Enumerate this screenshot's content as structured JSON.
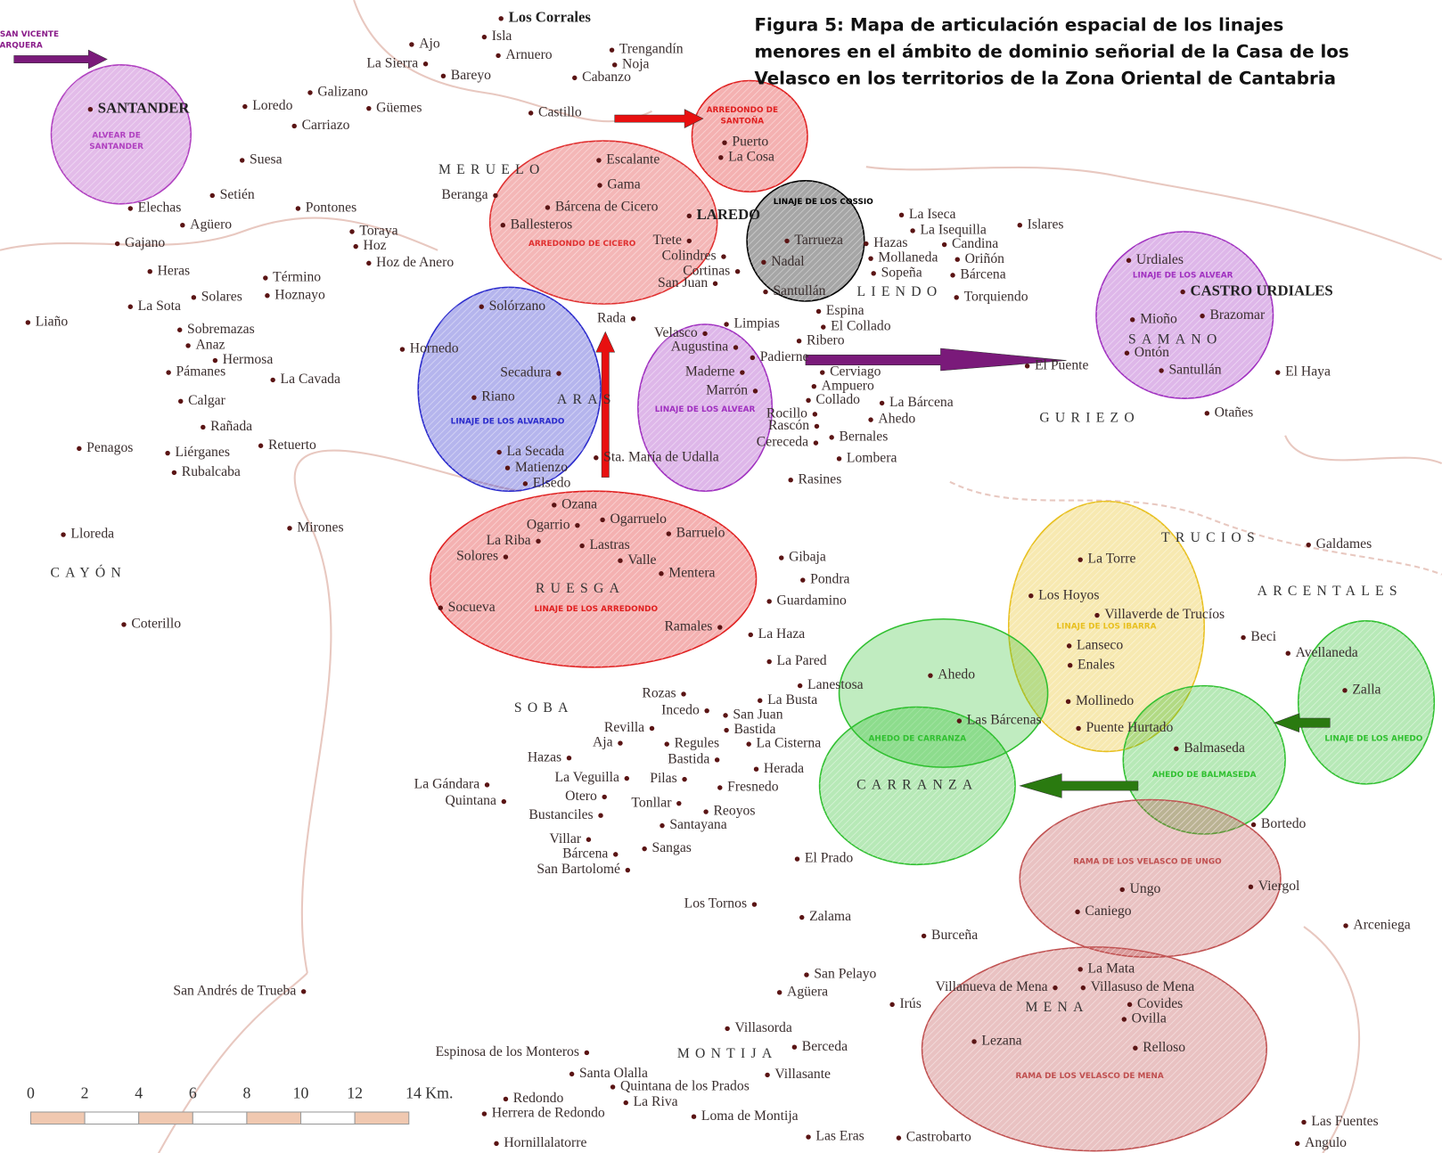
{
  "title": [
    "Figura 5: Mapa de articulación espacial de los linajes",
    "menores en el ámbito de dominio señorial de la Casa de los",
    "Velasco en los territorios de la Zona Oriental de Cantabria"
  ],
  "places": [
    "Los Corrales",
    "Isla",
    "Ajo",
    "La Sierra",
    "Arnuero",
    "Bareyo",
    "Trengandín",
    "Noja",
    "Cabanzo",
    "Galizano",
    "SANTANDER",
    "Loredo",
    "Güemes",
    "Carriazo",
    "Castillo",
    "Suesa",
    "Escalante",
    "Gama",
    "Beranga",
    "Bárcena de Cicero",
    "Ballesteros",
    "Setién",
    "Elechas",
    "Pontones",
    "Agüero",
    "Toraya",
    "Hoz",
    "Hoz de Anero",
    "Gajano",
    "Heras",
    "Término",
    "Hoznayo",
    "Solares",
    "La Sota",
    "Liaño",
    "Sobremazas",
    "Anaz",
    "Hermosa",
    "Pámanes",
    "La Cavada",
    "Hornedo",
    "Calgar",
    "Rañada",
    "Retuerto",
    "Penagos",
    "Liérganes",
    "Rubalcaba",
    "Lloreda",
    "Mirones",
    "Coterillo",
    "LAREDO",
    "Puerto",
    "La Cosa",
    "Tarrueza",
    "Trete",
    "Colindres",
    "Cortinas",
    "San Juan",
    "Nadal",
    "Santullán",
    "La Iseca",
    "La Isequilla",
    "Islares",
    "Hazas",
    "Candina",
    "Mollaneda",
    "Oriñón",
    "Sopeña",
    "Bárcena",
    "Torquiendo",
    "Espina",
    "El Collado",
    "Rada",
    "Limpias",
    "Velasco",
    "Augustina",
    "Ribero",
    "Padierne",
    "El Puente",
    "Cerviago",
    "Maderne",
    "Ampuero",
    "Marrón",
    "Collado",
    "La Bárcena",
    "Rocillo",
    "Ahedo",
    "Rascón",
    "Bernales",
    "Cereceda",
    "Lombera",
    "Rasines",
    "Sta. María de Udalla",
    "Solórzano",
    "Secadura",
    "Riano",
    "La Secada",
    "Matienzo",
    "Elsedo",
    "Urdiales",
    "CASTRO URDIALES",
    "Brazomar",
    "Mioño",
    "Ontón",
    "Santullán",
    "El Haya",
    "Otañes",
    "Ozana",
    "Ogarrio",
    "Ogarruelo",
    "Barruelo",
    "La Riba",
    "Lastras",
    "Solores",
    "Valle",
    "Mentera",
    "Socueva",
    "Ramales",
    "Gibaja",
    "Pondra",
    "Guardamino",
    "La Haza",
    "La Pared",
    "Lanestosa",
    "La Busta",
    "Rozas",
    "Incedo",
    "San Juan",
    "Revilla",
    "Bastida",
    "Aja",
    "Regules",
    "La Cisterna",
    "Hazas",
    "Bastida",
    "Herada",
    "La Veguilla",
    "Pilas",
    "Fresnedo",
    "La Gándara",
    "Quintana",
    "Otero",
    "Tonllar",
    "Reoyos",
    "Bustanciles",
    "Santayana",
    "Villar",
    "Bárcena",
    "Sangas",
    "San Bartolomé",
    "El Prado",
    "Los Tornos",
    "Zalama",
    "Burceña",
    "San Andrés de Trueba",
    "San Pelayo",
    "Agüera",
    "Irús",
    "Villasorda",
    "Berceda",
    "Espinosa de los Monteros",
    "Villasante",
    "Santa Olalla",
    "Quintana de los Prados",
    "Redondo",
    "La Riva",
    "Herrera de Redondo",
    "Loma de Montija",
    "Hornillalatorre",
    "Las Eras",
    "Castrobarto",
    "La Torre",
    "Galdames",
    "Los Hoyos",
    "Villaverde de Trucíos",
    "Beci",
    "Avellaneda",
    "Lanseco",
    "Enales",
    "Ahedo",
    "Zalla",
    "Mollinedo",
    "Las Bárcenas",
    "Puente Hurtado",
    "Balmaseda",
    "Bortedo",
    "Viergol",
    "Ungo",
    "Caniego",
    "Arceniega",
    "La Mata",
    "Villanueva de Mena",
    "Villasuso de Mena",
    "Covides",
    "Ovilla",
    "Lezana",
    "Relloso",
    "Las Fuentes",
    "Angulo"
  ],
  "regions": [
    "MERUELO",
    "ARAS",
    "RUESGA",
    "SOBA",
    "CAYÓN",
    "LIENDO",
    "GURIEZO",
    "SAMANO",
    "TRUCIOS",
    "ARCENTALES",
    "CARRANZA",
    "MENA",
    "MONTIJA"
  ],
  "lineages": [
    {
      "label": [
        "ALVEAR DE SAN VICENTE",
        "DE LA BARQUERA"
      ],
      "color": "#8a1c8a"
    },
    {
      "label": [
        "ALVEAR DE",
        "SANTANDER"
      ],
      "color": "#b040c0"
    },
    {
      "label": [
        "ARREDONDO DE",
        "SANTOÑA"
      ],
      "color": "#e02020"
    },
    {
      "label": [
        "ARREDONDO DE CICERO"
      ],
      "color": "#e03030"
    },
    {
      "label": [
        "LINAJE DE LOS COSSIO"
      ],
      "color": "#000000"
    },
    {
      "label": [
        "LINAJE DE LOS ALVEAR"
      ],
      "color": "#a030c0"
    },
    {
      "label": [
        "LINAJE DE LOS ALVARADO"
      ],
      "color": "#2a2acc"
    },
    {
      "label": [
        "LINAJE DE LOS ALVEAR"
      ],
      "color": "#a030c0"
    },
    {
      "label": [
        "LINAJE DE LOS ARREDONDO"
      ],
      "color": "#e02020"
    },
    {
      "label": [
        "LINAJE DE LOS IBARRA"
      ],
      "color": "#e8c020"
    },
    {
      "label": [
        "AHEDO DE CARRANZA"
      ],
      "color": "#30c030"
    },
    {
      "label": [
        "AHEDO DE BALMASEDA"
      ],
      "color": "#30c030"
    },
    {
      "label": [
        "LINAJE DE LOS AHEDO"
      ],
      "color": "#30c030"
    },
    {
      "label": [
        "RAMA DE LOS VELASCO DE UNGO"
      ],
      "color": "#c05050"
    },
    {
      "label": [
        "RAMA DE LOS VELASCO DE MENA"
      ],
      "color": "#c05050"
    }
  ],
  "scale_labels": [
    "0",
    "2",
    "4",
    "6",
    "8",
    "10",
    "12",
    "14 Km."
  ]
}
